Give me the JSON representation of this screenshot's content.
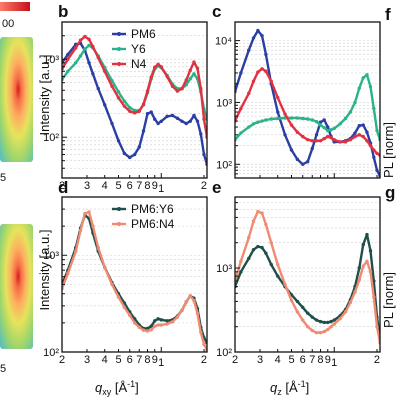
{
  "colors": {
    "PM6": "#2b3fa3",
    "Y6": "#2ab38a",
    "N4": "#e0323f",
    "PM6:Y6": "#1e4f4a",
    "PM6:N4": "#f08a72"
  },
  "side_fragments": {
    "colorbar_tick": "00",
    "left_top_label": "5",
    "left_bottom_label": "5",
    "right_top_letter": "f",
    "right_bottom_letter": "g",
    "right_top_ylabel": "PL [norm]",
    "right_bottom_ylabel": "PL [norm]"
  },
  "axis_text": {
    "ylabel_top": "Intensity [a.u.]",
    "ylabel_bottom": "Intensity [a.u.]",
    "xlabel_left": "q",
    "xlabel_left_sub": "xy",
    "xlabel_left_unit": " [Å",
    "xlabel_left_exp": "-1",
    "xlabel_left_close": "]",
    "xlabel_right": "q",
    "xlabel_right_sub": "z",
    "xlabel_right_unit": " [Å",
    "xlabel_right_exp": "-1",
    "xlabel_right_close": "]"
  },
  "chart_data": [
    {
      "panel": "b",
      "type": "line",
      "x_scale": "log",
      "y_scale": "log",
      "xlim": [
        0.2,
        2.1
      ],
      "ylim": [
        30,
        3000
      ],
      "ytick_labels": [
        "10²",
        "10³"
      ],
      "ytick_values": [
        100,
        1000
      ],
      "xtick_labels": [
        "2",
        "3",
        "4",
        "5",
        "6",
        "7",
        "8",
        "9",
        "1",
        "2"
      ],
      "xtick_values": [
        0.2,
        0.3,
        0.4,
        0.5,
        0.6,
        0.7,
        0.8,
        0.9,
        1,
        2
      ],
      "grid": true,
      "legend": "top-right",
      "series": [
        {
          "name": "PM6",
          "x": [
            0.2,
            0.22,
            0.25,
            0.27,
            0.29,
            0.31,
            0.33,
            0.36,
            0.4,
            0.45,
            0.5,
            0.55,
            0.6,
            0.65,
            0.7,
            0.75,
            0.8,
            0.85,
            0.9,
            0.95,
            1.0,
            1.1,
            1.2,
            1.3,
            1.4,
            1.5,
            1.6,
            1.7,
            1.8,
            1.9,
            2.0,
            2.1
          ],
          "y": [
            900,
            1150,
            1550,
            1600,
            1300,
            900,
            650,
            420,
            260,
            150,
            90,
            62,
            55,
            60,
            75,
            120,
            200,
            210,
            170,
            150,
            160,
            185,
            190,
            175,
            160,
            150,
            160,
            190,
            160,
            110,
            60,
            45
          ]
        },
        {
          "name": "Y6",
          "x": [
            0.2,
            0.22,
            0.25,
            0.27,
            0.29,
            0.31,
            0.33,
            0.36,
            0.4,
            0.45,
            0.5,
            0.55,
            0.6,
            0.65,
            0.7,
            0.75,
            0.8,
            0.85,
            0.9,
            0.95,
            1.0,
            1.1,
            1.2,
            1.3,
            1.4,
            1.5,
            1.6,
            1.7,
            1.8,
            1.9,
            2.0,
            2.1
          ],
          "y": [
            550,
            700,
            900,
            1100,
            1350,
            1500,
            1400,
            1100,
            780,
            530,
            380,
            290,
            240,
            220,
            220,
            260,
            370,
            560,
            750,
            820,
            780,
            620,
            480,
            420,
            420,
            470,
            560,
            650,
            560,
            380,
            230,
            170
          ]
        },
        {
          "name": "N4",
          "x": [
            0.2,
            0.22,
            0.25,
            0.27,
            0.29,
            0.31,
            0.33,
            0.36,
            0.4,
            0.45,
            0.5,
            0.55,
            0.6,
            0.65,
            0.7,
            0.75,
            0.8,
            0.85,
            0.9,
            0.95,
            1.0,
            1.1,
            1.2,
            1.3,
            1.4,
            1.5,
            1.6,
            1.7,
            1.8,
            1.9,
            2.0,
            2.1
          ],
          "y": [
            750,
            1000,
            1400,
            1750,
            1950,
            1800,
            1450,
            1050,
            700,
            450,
            320,
            250,
            215,
            205,
            215,
            265,
            390,
            590,
            790,
            860,
            800,
            600,
            450,
            390,
            420,
            540,
            720,
            920,
            760,
            420,
            170,
            100
          ]
        }
      ]
    },
    {
      "panel": "c",
      "type": "line",
      "x_scale": "log",
      "y_scale": "log",
      "xlim": [
        0.2,
        2.1
      ],
      "ylim": [
        60,
        20000
      ],
      "ytick_labels": [
        "10²",
        "10³",
        "10⁴"
      ],
      "ytick_values": [
        100,
        1000,
        10000
      ],
      "xtick_labels": [],
      "xtick_values": [
        0.2,
        0.3,
        0.4,
        0.5,
        0.6,
        0.7,
        0.8,
        0.9,
        1,
        2
      ],
      "grid": true,
      "series": [
        {
          "name": "PM6",
          "x": [
            0.2,
            0.22,
            0.25,
            0.27,
            0.29,
            0.31,
            0.33,
            0.36,
            0.4,
            0.45,
            0.5,
            0.55,
            0.6,
            0.65,
            0.7,
            0.75,
            0.8,
            0.85,
            0.9,
            0.95,
            1.0,
            1.1,
            1.2,
            1.3,
            1.4,
            1.5,
            1.6,
            1.7,
            1.8,
            1.9,
            2.0,
            2.1
          ],
          "y": [
            1500,
            3000,
            7000,
            11000,
            14500,
            12000,
            6000,
            2000,
            700,
            300,
            170,
            120,
            100,
            110,
            180,
            300,
            480,
            520,
            400,
            280,
            230,
            230,
            240,
            260,
            320,
            420,
            430,
            330,
            220,
            130,
            80,
            65
          ]
        },
        {
          "name": "Y6",
          "x": [
            0.2,
            0.22,
            0.25,
            0.27,
            0.29,
            0.31,
            0.33,
            0.36,
            0.4,
            0.45,
            0.5,
            0.55,
            0.6,
            0.65,
            0.7,
            0.75,
            0.8,
            0.85,
            0.9,
            0.95,
            1.0,
            1.1,
            1.2,
            1.3,
            1.4,
            1.5,
            1.6,
            1.7,
            1.8,
            1.9,
            2.0,
            2.1
          ],
          "y": [
            250,
            320,
            400,
            450,
            480,
            500,
            520,
            540,
            550,
            560,
            560,
            560,
            550,
            540,
            520,
            490,
            430,
            390,
            350,
            360,
            380,
            450,
            550,
            700,
            1000,
            1700,
            2500,
            2800,
            1800,
            800,
            350,
            250
          ]
        },
        {
          "name": "N4",
          "x": [
            0.2,
            0.22,
            0.25,
            0.27,
            0.29,
            0.31,
            0.33,
            0.36,
            0.4,
            0.45,
            0.5,
            0.55,
            0.6,
            0.65,
            0.7,
            0.75,
            0.8,
            0.85,
            0.9,
            0.95,
            1.0,
            1.1,
            1.2,
            1.3,
            1.4,
            1.5,
            1.6,
            1.7,
            1.8,
            1.9,
            2.0,
            2.1
          ],
          "y": [
            500,
            800,
            1400,
            2200,
            3100,
            3500,
            3200,
            2200,
            1200,
            650,
            430,
            330,
            280,
            250,
            240,
            240,
            240,
            260,
            280,
            270,
            250,
            230,
            230,
            250,
            280,
            300,
            280,
            240,
            200,
            170,
            150,
            140
          ]
        }
      ]
    },
    {
      "panel": "d",
      "type": "line",
      "x_scale": "log",
      "y_scale": "log",
      "xlim": [
        0.2,
        2.1
      ],
      "ylim": [
        100,
        4000
      ],
      "ytick_labels": [
        "10²",
        "10³"
      ],
      "ytick_values": [
        100,
        1000
      ],
      "xtick_labels": [
        "2",
        "3",
        "4",
        "5",
        "6",
        "7",
        "8",
        "9",
        "1",
        "2"
      ],
      "xtick_values": [
        0.2,
        0.3,
        0.4,
        0.5,
        0.6,
        0.7,
        0.8,
        0.9,
        1,
        2
      ],
      "grid": true,
      "legend": "top-right",
      "series": [
        {
          "name": "PM6:Y6",
          "x": [
            0.2,
            0.22,
            0.25,
            0.27,
            0.29,
            0.31,
            0.33,
            0.36,
            0.4,
            0.45,
            0.5,
            0.55,
            0.6,
            0.65,
            0.7,
            0.75,
            0.8,
            0.85,
            0.9,
            0.95,
            1.0,
            1.1,
            1.2,
            1.3,
            1.4,
            1.5,
            1.6,
            1.7,
            1.8,
            1.9,
            2.0,
            2.1
          ],
          "y": [
            500,
            700,
            1200,
            1900,
            2600,
            2400,
            1700,
            1100,
            750,
            520,
            400,
            320,
            260,
            220,
            190,
            175,
            175,
            185,
            210,
            220,
            215,
            210,
            215,
            235,
            270,
            330,
            380,
            360,
            280,
            180,
            140,
            125
          ]
        },
        {
          "name": "PM6:N4",
          "x": [
            0.2,
            0.22,
            0.25,
            0.27,
            0.29,
            0.31,
            0.33,
            0.36,
            0.4,
            0.45,
            0.5,
            0.55,
            0.6,
            0.65,
            0.7,
            0.75,
            0.8,
            0.85,
            0.9,
            0.95,
            1.0,
            1.1,
            1.2,
            1.3,
            1.4,
            1.5,
            1.6,
            1.7,
            1.8,
            1.9,
            2.0,
            2.1
          ],
          "y": [
            450,
            650,
            1100,
            1800,
            2700,
            2800,
            2000,
            1200,
            750,
            500,
            370,
            290,
            240,
            200,
            180,
            168,
            165,
            170,
            185,
            190,
            190,
            195,
            205,
            230,
            270,
            330,
            380,
            340,
            250,
            160,
            120,
            105
          ]
        }
      ]
    },
    {
      "panel": "e",
      "type": "line",
      "x_scale": "log",
      "y_scale": "log",
      "xlim": [
        0.2,
        2.1
      ],
      "ylim": [
        100,
        7000
      ],
      "ytick_labels": [
        "10²",
        "10³"
      ],
      "ytick_values": [
        100,
        1000
      ],
      "xtick_labels": [
        "2",
        "3",
        "4",
        "5",
        "6",
        "7",
        "8",
        "9",
        "1",
        "2"
      ],
      "xtick_values": [
        0.2,
        0.3,
        0.4,
        0.5,
        0.6,
        0.7,
        0.8,
        0.9,
        1,
        2
      ],
      "grid": true,
      "series": [
        {
          "name": "PM6:Y6",
          "x": [
            0.2,
            0.22,
            0.25,
            0.27,
            0.29,
            0.31,
            0.33,
            0.36,
            0.4,
            0.45,
            0.5,
            0.55,
            0.6,
            0.65,
            0.7,
            0.75,
            0.8,
            0.85,
            0.9,
            0.95,
            1.0,
            1.1,
            1.2,
            1.3,
            1.4,
            1.5,
            1.6,
            1.7,
            1.8,
            1.9,
            2.0,
            2.1
          ],
          "y": [
            600,
            900,
            1300,
            1650,
            1800,
            1750,
            1500,
            1100,
            800,
            600,
            480,
            400,
            340,
            290,
            260,
            240,
            230,
            225,
            225,
            230,
            240,
            270,
            320,
            420,
            600,
            1000,
            1900,
            2500,
            1600,
            700,
            260,
            150
          ]
        },
        {
          "name": "PM6:N4",
          "x": [
            0.2,
            0.22,
            0.25,
            0.27,
            0.29,
            0.31,
            0.33,
            0.36,
            0.4,
            0.45,
            0.5,
            0.55,
            0.6,
            0.65,
            0.7,
            0.75,
            0.8,
            0.85,
            0.9,
            0.95,
            1.0,
            1.1,
            1.2,
            1.3,
            1.4,
            1.5,
            1.6,
            1.7,
            1.8,
            1.9,
            2.0,
            2.1
          ],
          "y": [
            700,
            1200,
            2300,
            3600,
            4700,
            4500,
            3300,
            2000,
            1100,
            640,
            410,
            300,
            240,
            200,
            180,
            170,
            170,
            175,
            185,
            200,
            215,
            250,
            300,
            390,
            520,
            720,
            1050,
            1200,
            900,
            450,
            200,
            130
          ]
        }
      ]
    }
  ]
}
